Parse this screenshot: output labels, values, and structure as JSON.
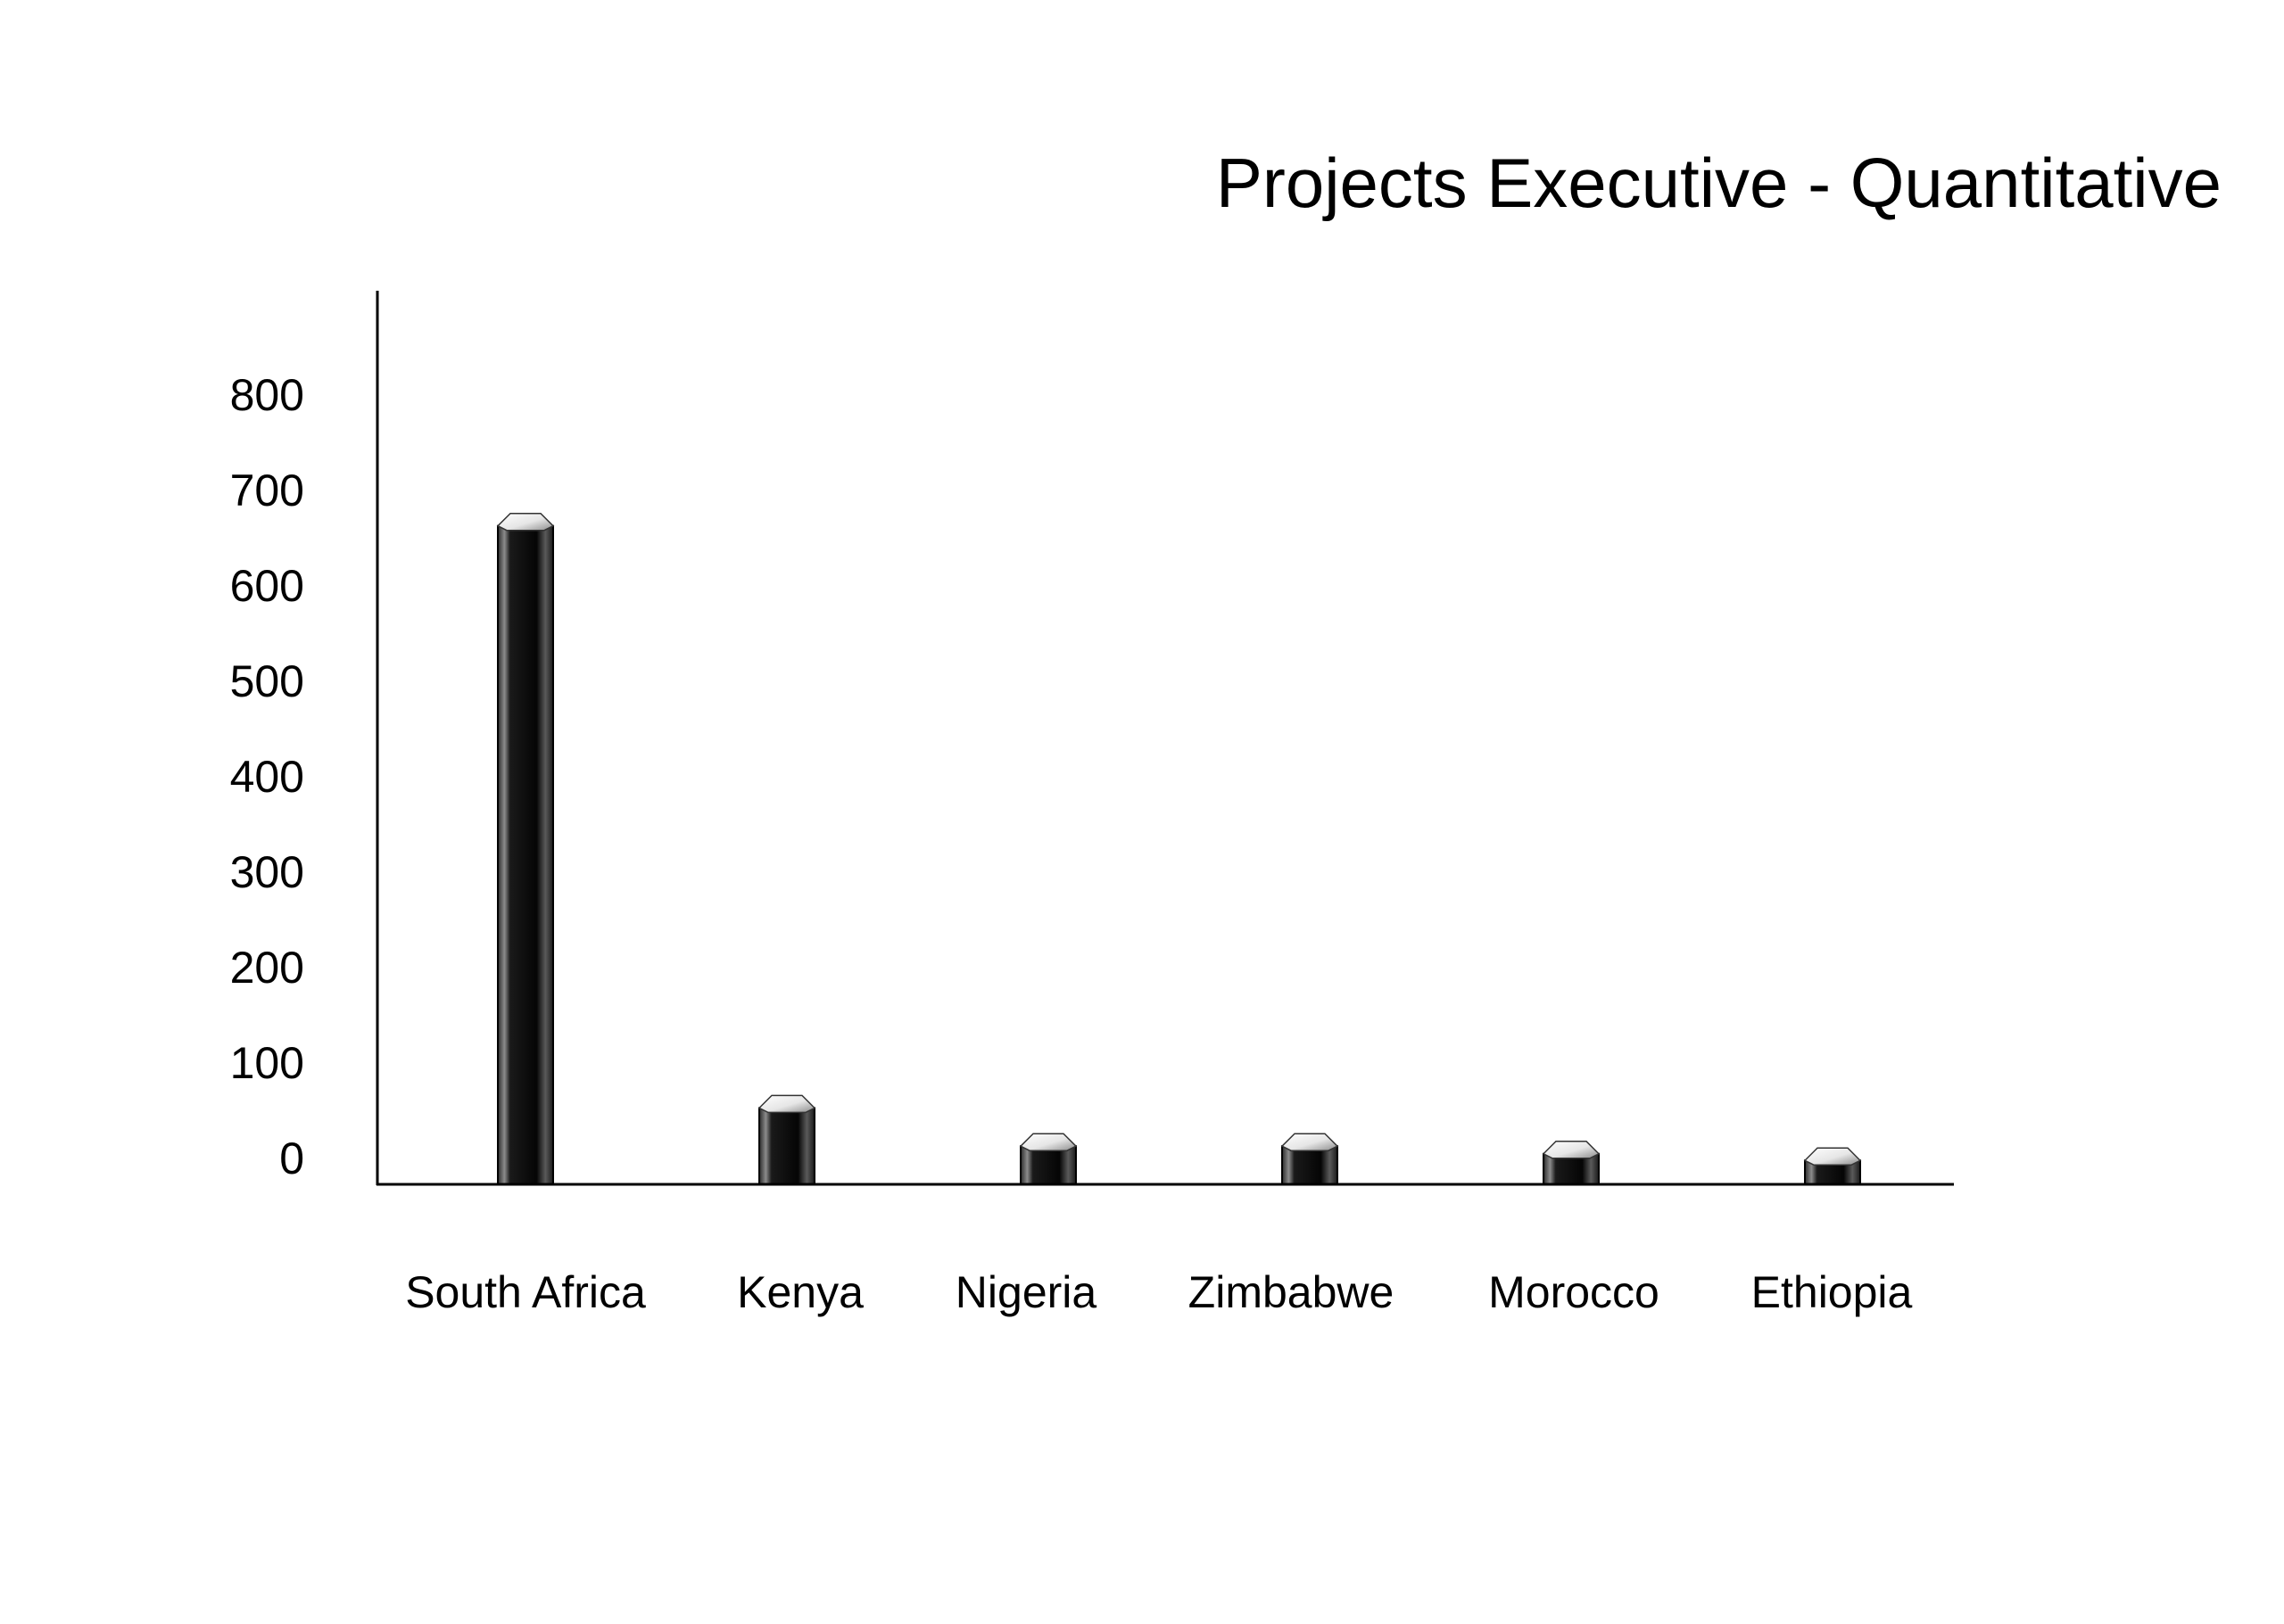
{
  "chart_data": {
    "type": "bar",
    "title": "Projects Executive - Quantitative",
    "xlabel": "",
    "ylabel": "",
    "categories": [
      "South Africa",
      "Kenya",
      "Nigeria",
      "Zimbabwe",
      "Morocco",
      "Ethiopia"
    ],
    "values": [
      690,
      80,
      40,
      40,
      32,
      25
    ],
    "ylim": [
      0,
      800
    ],
    "yticks": [
      "0",
      "100",
      "200",
      "300",
      "400",
      "500",
      "600",
      "700",
      "800"
    ],
    "grid": false,
    "legend": "none",
    "colors": {
      "bar_dark": "#0a0a0a",
      "bar_mid": "#3a3a3a",
      "bar_highlight": "#8c8c8c",
      "bar_top": "#f2f2f2",
      "axis": "#000000"
    }
  }
}
